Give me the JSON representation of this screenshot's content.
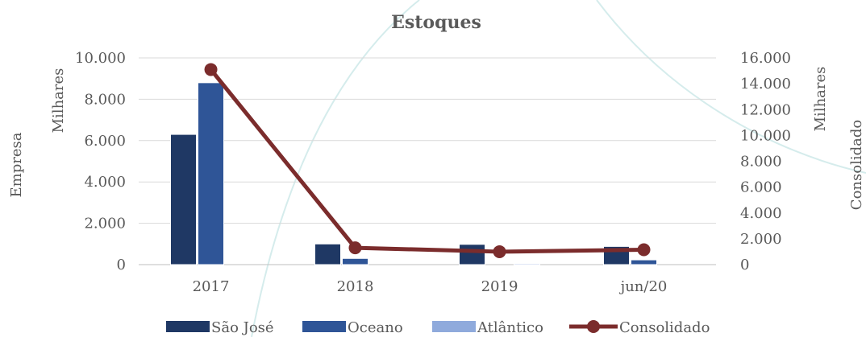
{
  "chart_data": {
    "type": "bar",
    "title": "Estoques",
    "categories": [
      "2017",
      "2018",
      "2019",
      "jun/20"
    ],
    "left_axis": {
      "label": "Empresa",
      "unit_label": "Milhares",
      "min": 0,
      "max": 10000,
      "ticks": [
        0,
        2000,
        4000,
        6000,
        8000,
        10000
      ],
      "tick_labels": [
        "0",
        "2.000",
        "4.000",
        "6.000",
        "8.000",
        "10.000"
      ]
    },
    "right_axis": {
      "label": "Consolidado",
      "unit_label": "Milhares",
      "min": 0,
      "max": 16000,
      "ticks": [
        0,
        2000,
        4000,
        6000,
        8000,
        10000,
        12000,
        14000,
        16000
      ],
      "tick_labels": [
        "0",
        "2.000",
        "4.000",
        "6.000",
        "8.000",
        "10.000",
        "12.000",
        "14.000",
        "16.000"
      ]
    },
    "series": [
      {
        "name": "São José",
        "type": "bar",
        "axis": "left",
        "color": "#1f3864",
        "values": [
          6300,
          1000,
          980,
          880
        ]
      },
      {
        "name": "Oceano",
        "type": "bar",
        "axis": "left",
        "color": "#2f5597",
        "values": [
          8800,
          300,
          0,
          230
        ]
      },
      {
        "name": "Atlântico",
        "type": "bar",
        "axis": "left",
        "color": "#8faadc",
        "values": [
          0,
          0,
          50,
          0
        ]
      },
      {
        "name": "Consolidado",
        "type": "line",
        "axis": "right",
        "color": "#7b2c2c",
        "values": [
          15100,
          1300,
          1000,
          1150
        ]
      }
    ],
    "grid": true,
    "legend_position": "bottom"
  }
}
